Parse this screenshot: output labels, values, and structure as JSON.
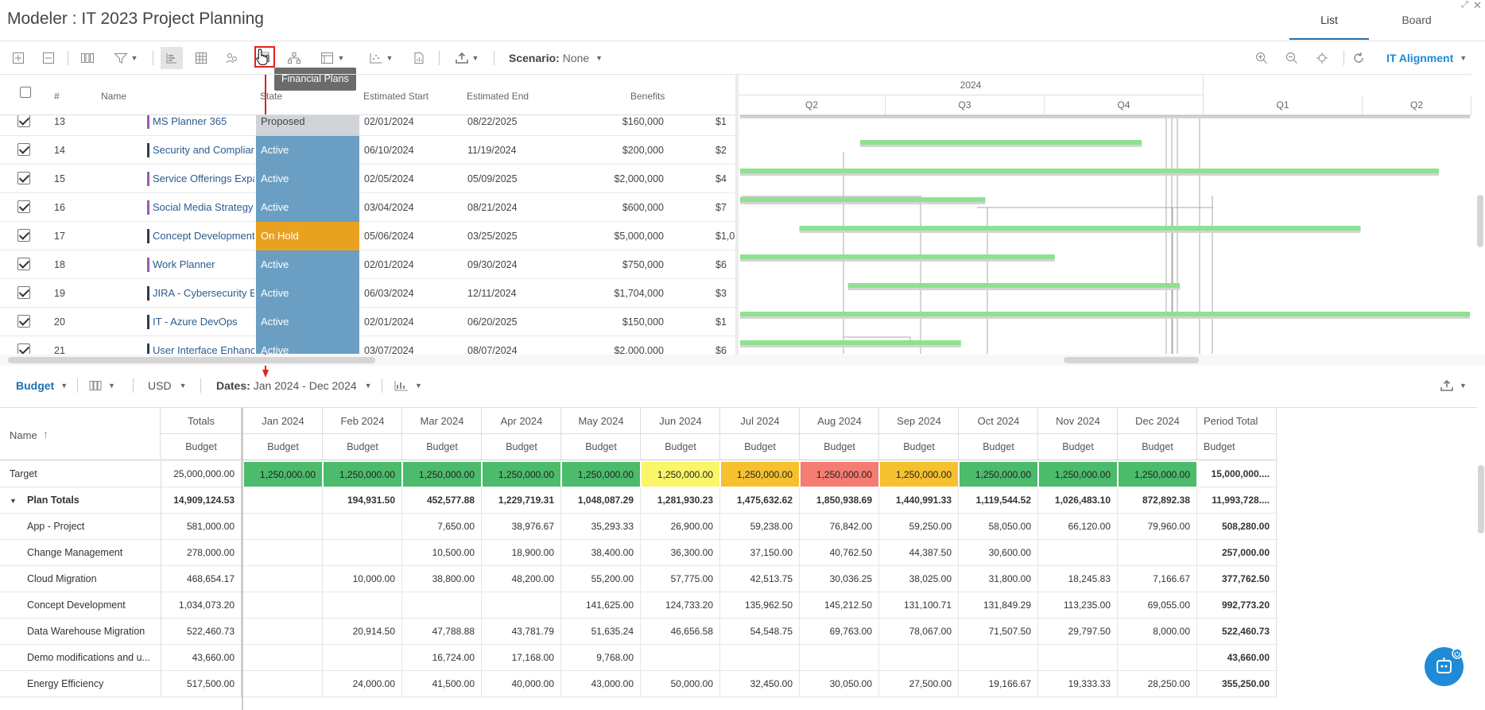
{
  "window": {
    "title": "Modeler : IT 2023 Project Planning",
    "tabs": [
      "List",
      "Board"
    ],
    "active_tab": "List"
  },
  "toolbar": {
    "scenario_label": "Scenario:",
    "scenario_value": "None",
    "tooltip": "Financial Plans",
    "alignment": "IT Alignment"
  },
  "grid": {
    "headers": {
      "num": "#",
      "name": "Name",
      "state": "State",
      "start": "Estimated Start",
      "end": "Estimated End",
      "benefits": "Benefits"
    },
    "rows": [
      {
        "num": "13",
        "name": "MS Planner 365",
        "state": "Proposed",
        "start": "02/01/2024",
        "end": "08/22/2025",
        "benefits": "$160,000",
        "extra": "$1",
        "color": "#9b59b6"
      },
      {
        "num": "14",
        "name": "Security and Complian",
        "state": "Active",
        "start": "06/10/2024",
        "end": "11/19/2024",
        "benefits": "$200,000",
        "extra": "$2",
        "color": "#2c3e50"
      },
      {
        "num": "15",
        "name": "Service Offerings Expa",
        "state": "Active",
        "start": "02/05/2024",
        "end": "05/09/2025",
        "benefits": "$2,000,000",
        "extra": "$4",
        "color": "#9b59b6"
      },
      {
        "num": "16",
        "name": "Social Media Strategy",
        "state": "Active",
        "start": "03/04/2024",
        "end": "08/21/2024",
        "benefits": "$600,000",
        "extra": "$7",
        "color": "#9b59b6"
      },
      {
        "num": "17",
        "name": "Concept Development",
        "state": "On Hold",
        "start": "05/06/2024",
        "end": "03/25/2025",
        "benefits": "$5,000,000",
        "extra": "$1,0",
        "color": "#2c3e50"
      },
      {
        "num": "18",
        "name": "Work Planner",
        "state": "Active",
        "start": "02/01/2024",
        "end": "09/30/2024",
        "benefits": "$750,000",
        "extra": "$6",
        "color": "#9b59b6"
      },
      {
        "num": "19",
        "name": "JIRA - Cybersecurity En",
        "state": "Active",
        "start": "06/03/2024",
        "end": "12/11/2024",
        "benefits": "$1,704,000",
        "extra": "$3",
        "color": "#2c3e50"
      },
      {
        "num": "20",
        "name": "IT - Azure DevOps",
        "state": "Active",
        "start": "02/01/2024",
        "end": "06/20/2025",
        "benefits": "$150,000",
        "extra": "$1",
        "color": "#2c3e50"
      },
      {
        "num": "21",
        "name": "User Interface Enhanc",
        "state": "Active",
        "start": "03/07/2024",
        "end": "08/07/2024",
        "benefits": "$2,000,000",
        "extra": "$6",
        "color": "#2c3e50"
      }
    ],
    "state_colors": {
      "Proposed": "#d0d3d8",
      "Active": "#6a9fc3",
      "On Hold": "#e9a220"
    }
  },
  "gantt": {
    "year": "2024",
    "quarters": [
      "Q2",
      "Q3",
      "Q4",
      "Q1",
      "Q2"
    ]
  },
  "financial": {
    "view": "Budget",
    "currency": "USD",
    "dates_label": "Dates:",
    "dates_value": "Jan 2024 - Dec 2024",
    "name_header": "Name",
    "totals_header": "Totals",
    "sub_header": "Budget",
    "months": [
      "Jan 2024",
      "Feb 2024",
      "Mar 2024",
      "Apr 2024",
      "May 2024",
      "Jun 2024",
      "Jul 2024",
      "Aug 2024",
      "Sep 2024",
      "Oct 2024",
      "Nov 2024",
      "Dec 2024",
      "Period Total"
    ],
    "target": {
      "name": "Target",
      "total": "25,000,000.00",
      "values": [
        "1,250,000.00",
        "1,250,000.00",
        "1,250,000.00",
        "1,250,000.00",
        "1,250,000.00",
        "1,250,000.00",
        "1,250,000.00",
        "1,250,000.00",
        "1,250,000.00",
        "1,250,000.00",
        "1,250,000.00",
        "1,250,000.00"
      ],
      "colors": [
        "#4cbb6c",
        "#4cbb6c",
        "#4cbb6c",
        "#4cbb6c",
        "#4cbb6c",
        "#fbf56a",
        "#f6c02f",
        "#f47c72",
        "#f6c02f",
        "#4cbb6c",
        "#4cbb6c",
        "#4cbb6c"
      ],
      "period": "15,000,000...."
    },
    "plan_totals": {
      "name": "Plan Totals",
      "total": "14,909,124.53",
      "values": [
        "",
        "194,931.50",
        "452,577.88",
        "1,229,719.31",
        "1,048,087.29",
        "1,281,930.23",
        "1,475,632.62",
        "1,850,938.69",
        "1,440,991.33",
        "1,119,544.52",
        "1,026,483.10",
        "872,892.38"
      ],
      "period": "11,993,728...."
    },
    "rows": [
      {
        "name": "App - Project",
        "total": "581,000.00",
        "values": [
          "",
          "",
          "7,650.00",
          "38,976.67",
          "35,293.33",
          "26,900.00",
          "59,238.00",
          "76,842.00",
          "59,250.00",
          "58,050.00",
          "66,120.00",
          "79,960.00"
        ],
        "period": "508,280.00"
      },
      {
        "name": "Change Management",
        "total": "278,000.00",
        "values": [
          "",
          "",
          "10,500.00",
          "18,900.00",
          "38,400.00",
          "36,300.00",
          "37,150.00",
          "40,762.50",
          "44,387.50",
          "30,600.00",
          "",
          ""
        ],
        "period": "257,000.00"
      },
      {
        "name": "Cloud Migration",
        "total": "468,654.17",
        "values": [
          "",
          "10,000.00",
          "38,800.00",
          "48,200.00",
          "55,200.00",
          "57,775.00",
          "42,513.75",
          "30,036.25",
          "38,025.00",
          "31,800.00",
          "18,245.83",
          "7,166.67"
        ],
        "period": "377,762.50"
      },
      {
        "name": "Concept Development",
        "total": "1,034,073.20",
        "values": [
          "",
          "",
          "",
          "",
          "141,625.00",
          "124,733.20",
          "135,962.50",
          "145,212.50",
          "131,100.71",
          "131,849.29",
          "113,235.00",
          "69,055.00"
        ],
        "period": "992,773.20"
      },
      {
        "name": "Data Warehouse Migration",
        "total": "522,460.73",
        "values": [
          "",
          "20,914.50",
          "47,788.88",
          "43,781.79",
          "51,635.24",
          "46,656.58",
          "54,548.75",
          "69,763.00",
          "78,067.00",
          "71,507.50",
          "29,797.50",
          "8,000.00"
        ],
        "period": "522,460.73"
      },
      {
        "name": "Demo modifications and u...",
        "total": "43,660.00",
        "values": [
          "",
          "",
          "16,724.00",
          "17,168.00",
          "9,768.00",
          "",
          "",
          "",
          "",
          "",
          "",
          ""
        ],
        "period": "43,660.00"
      },
      {
        "name": "Energy Efficiency",
        "total": "517,500.00",
        "values": [
          "",
          "24,000.00",
          "41,500.00",
          "40,000.00",
          "43,000.00",
          "50,000.00",
          "32,450.00",
          "30,050.00",
          "27,500.00",
          "19,166.67",
          "19,333.33",
          "28,250.00"
        ],
        "period": "355,250.00"
      }
    ]
  }
}
